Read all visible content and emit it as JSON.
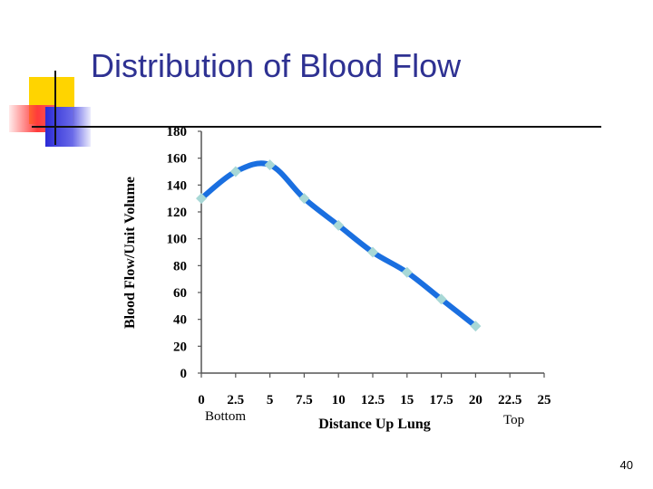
{
  "slide": {
    "title": "Distribution of Blood Flow",
    "page_number": "40",
    "bottom_label": "Bottom",
    "top_label": "Top"
  },
  "colors": {
    "title": "#2e3192",
    "line": "#1a6fe0",
    "marker": "#a8d8d6",
    "deco_yellow": "#ffd400",
    "deco_red": "#ff3b3b",
    "deco_blue": "#2b2bd6"
  },
  "chart_data": {
    "type": "line",
    "title": "",
    "xlabel": "Distance Up Lung",
    "ylabel": "Blood Flow/Unit Volume",
    "xlim": [
      0,
      25
    ],
    "ylim": [
      0,
      180
    ],
    "x_ticks": [
      "0",
      "2.5",
      "5",
      "7.5",
      "10",
      "12.5",
      "15",
      "17.5",
      "20",
      "22.5",
      "25"
    ],
    "y_ticks": [
      "0",
      "20",
      "40",
      "60",
      "80",
      "100",
      "120",
      "140",
      "160",
      "180"
    ],
    "grid": false,
    "smooth": true,
    "series": [
      {
        "x": [
          0,
          2.5,
          5,
          7.5,
          10,
          12.5,
          15,
          17.5,
          20
        ],
        "y": [
          130,
          150,
          155,
          130,
          110,
          90,
          75,
          55,
          35
        ]
      }
    ]
  }
}
